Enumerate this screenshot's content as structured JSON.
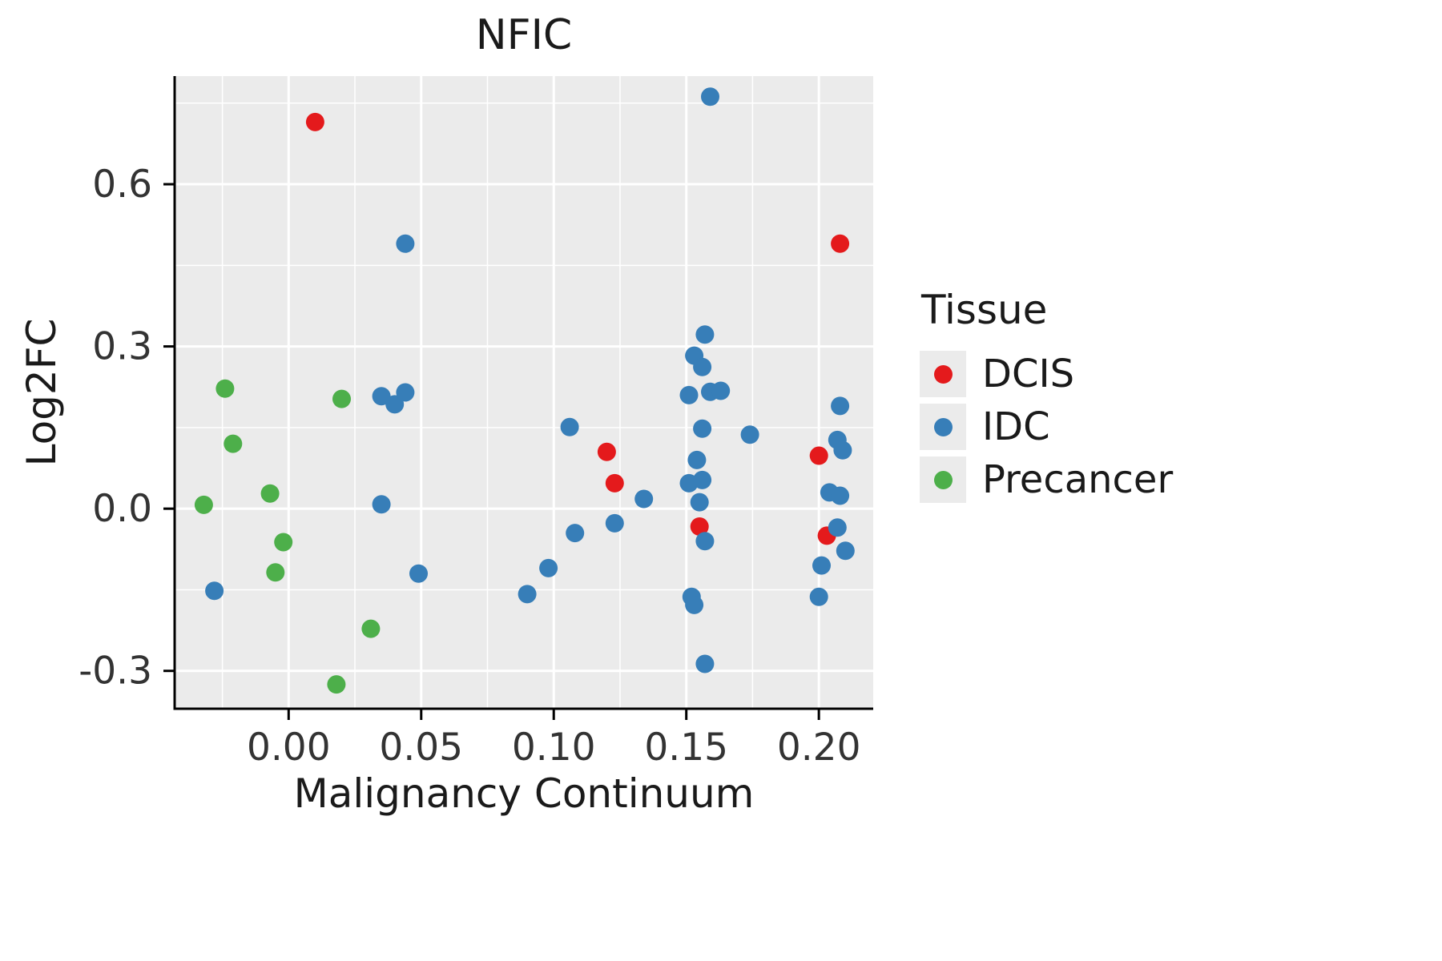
{
  "title": "NFIC",
  "chart_data": {
    "type": "scatter",
    "title": "NFIC",
    "xlabel": "Malignancy Continuum",
    "ylabel": "Log2FC",
    "xlim": [
      -0.043,
      0.2205
    ],
    "ylim": [
      -0.37,
      0.8
    ],
    "x_ticks": [
      0.0,
      0.05,
      0.1,
      0.15,
      0.2
    ],
    "x_tick_labels": [
      "0.00",
      "0.05",
      "0.10",
      "0.15",
      "0.20"
    ],
    "x_minor_ticks": [
      -0.025,
      0.025,
      0.075,
      0.125,
      0.175
    ],
    "y_ticks": [
      -0.3,
      0.0,
      0.3,
      0.6
    ],
    "y_tick_labels": [
      "-0.3",
      "0.0",
      "0.3",
      "0.6"
    ],
    "y_minor_ticks": [
      -0.15,
      0.15,
      0.45,
      0.75
    ],
    "grid": true,
    "legend_title": "Tissue",
    "legend_position": "right",
    "point_radius": 11.5,
    "colors": {
      "panel_bg": "#EBEBEB",
      "grid": "#FFFFFF",
      "axis": "#000000",
      "tick_text": "#333333",
      "legend_key_bg": "#EBEBEB"
    },
    "series": [
      {
        "name": "DCIS",
        "color": "#E41A1C",
        "points": [
          [
            0.01,
            0.715
          ],
          [
            0.208,
            0.49
          ],
          [
            0.12,
            0.105
          ],
          [
            0.123,
            0.047
          ],
          [
            0.155,
            -0.033
          ],
          [
            0.2,
            0.098
          ],
          [
            0.203,
            -0.05
          ]
        ]
      },
      {
        "name": "IDC",
        "color": "#377EB8",
        "points": [
          [
            0.159,
            0.762
          ],
          [
            0.044,
            0.49
          ],
          [
            0.157,
            0.322
          ],
          [
            0.153,
            0.283
          ],
          [
            0.156,
            0.262
          ],
          [
            0.035,
            0.208
          ],
          [
            0.04,
            0.193
          ],
          [
            0.044,
            0.215
          ],
          [
            0.151,
            0.21
          ],
          [
            0.159,
            0.216
          ],
          [
            0.163,
            0.218
          ],
          [
            0.106,
            0.151
          ],
          [
            0.156,
            0.148
          ],
          [
            0.174,
            0.137
          ],
          [
            0.208,
            0.19
          ],
          [
            0.207,
            0.127
          ],
          [
            0.209,
            0.108
          ],
          [
            0.154,
            0.09
          ],
          [
            0.151,
            0.047
          ],
          [
            0.156,
            0.053
          ],
          [
            0.134,
            0.018
          ],
          [
            0.035,
            0.008
          ],
          [
            0.155,
            0.012
          ],
          [
            0.204,
            0.03
          ],
          [
            0.208,
            0.024
          ],
          [
            0.123,
            -0.027
          ],
          [
            0.108,
            -0.045
          ],
          [
            0.157,
            -0.06
          ],
          [
            0.207,
            -0.035
          ],
          [
            0.21,
            -0.078
          ],
          [
            0.201,
            -0.105
          ],
          [
            0.098,
            -0.11
          ],
          [
            0.049,
            -0.12
          ],
          [
            -0.028,
            -0.152
          ],
          [
            0.09,
            -0.158
          ],
          [
            0.152,
            -0.163
          ],
          [
            0.153,
            -0.178
          ],
          [
            0.2,
            -0.163
          ],
          [
            0.157,
            -0.287
          ]
        ]
      },
      {
        "name": "Precancer",
        "color": "#4DAF4A",
        "points": [
          [
            -0.024,
            0.222
          ],
          [
            0.02,
            0.203
          ],
          [
            -0.021,
            0.12
          ],
          [
            -0.032,
            0.007
          ],
          [
            -0.007,
            0.028
          ],
          [
            -0.002,
            -0.062
          ],
          [
            -0.005,
            -0.118
          ],
          [
            0.031,
            -0.222
          ],
          [
            0.018,
            -0.325
          ]
        ]
      }
    ]
  }
}
